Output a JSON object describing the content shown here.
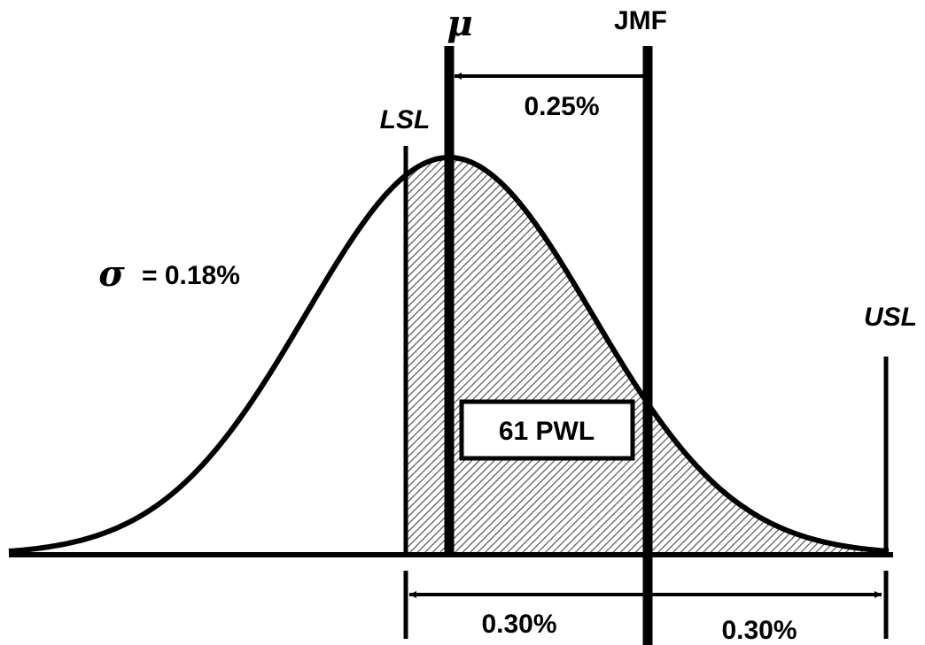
{
  "labels": {
    "mu": "μ",
    "jmf": "JMF",
    "lsl": "LSL",
    "usl": "USL",
    "sigma_symbol": "σ",
    "sigma_value": "= 0.18%",
    "shift": "0.25%",
    "lower_tolerance": "0.30%",
    "upper_tolerance": "0.30%",
    "pwl_box": "61 PWL"
  },
  "distribution": {
    "mean_offset_from_jmf_percent": -0.25,
    "std_dev_percent": 0.18,
    "tolerance_percent": 0.3,
    "pwl_percent": 61
  },
  "colors": {
    "stroke": "#000000",
    "hatch": "#555555",
    "hatch_background": "#ffffff"
  }
}
